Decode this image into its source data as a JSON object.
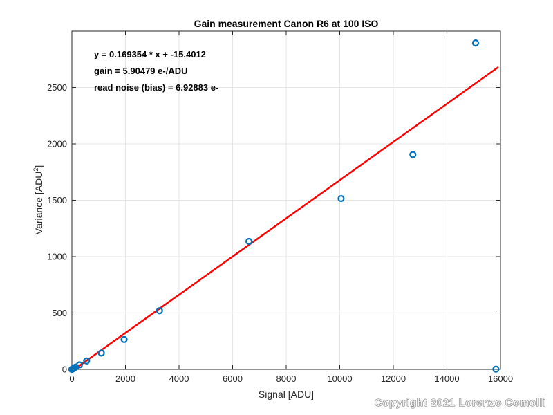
{
  "chart_data": {
    "type": "scatter",
    "title": "Gain measurement Canon R6 at 100 ISO",
    "xlabel": "Signal [ADU]",
    "ylabel": "Variance [ADU",
    "ylabel_superscript": "2",
    "ylabel_close": "]",
    "xlim": [
      0,
      16000
    ],
    "ylim": [
      0,
      3000
    ],
    "xticks": [
      0,
      2000,
      4000,
      6000,
      8000,
      10000,
      12000,
      14000,
      16000
    ],
    "yticks": [
      0,
      500,
      1000,
      1500,
      2000,
      2500
    ],
    "grid": true,
    "points": {
      "x": [
        0,
        10,
        20,
        40,
        70,
        140,
        280,
        550,
        1100,
        1950,
        3270,
        6610,
        10050,
        12730,
        15070,
        15830
      ],
      "y": [
        0,
        2,
        3,
        5,
        10,
        20,
        40,
        75,
        145,
        265,
        520,
        1135,
        1515,
        1905,
        2895,
        2
      ],
      "color": "#0072BD"
    },
    "fit_line": {
      "slope": 0.169354,
      "intercept": -15.4012,
      "x_range": [
        0,
        15920
      ],
      "color": "#FF0000"
    },
    "annotations": [
      "y = 0.169354 * x + -15.4012",
      "gain = 5.90479 e-/ADU",
      "read noise (bias) = 6.92883 e-"
    ]
  },
  "watermark": "Copyright 2021 Lorenzo Comolli"
}
